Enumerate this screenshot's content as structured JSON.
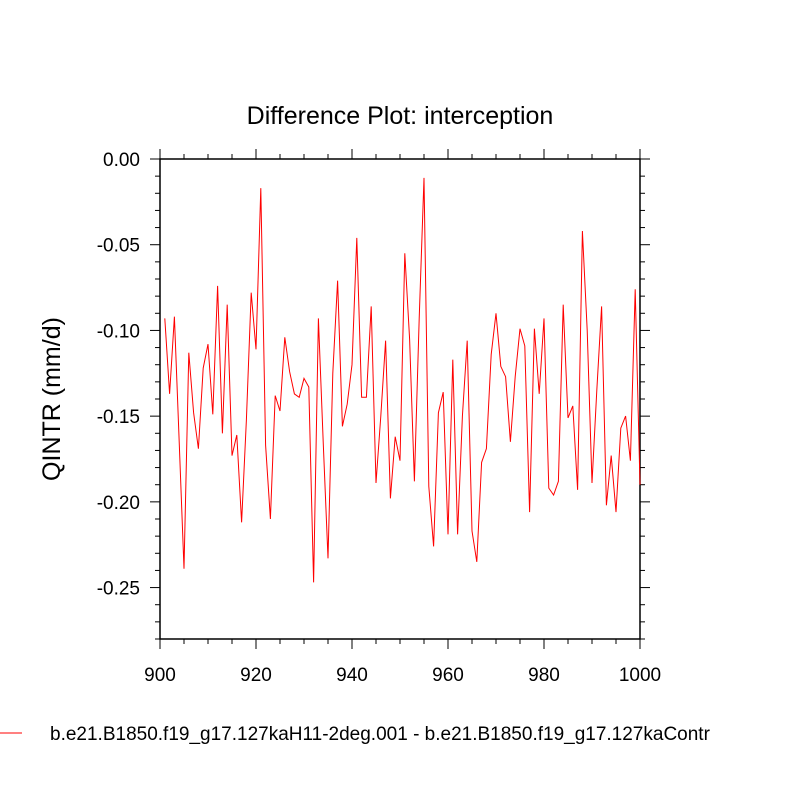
{
  "chart_data": {
    "type": "line",
    "title": "Difference Plot: interception",
    "xlabel": "",
    "ylabel": "QINTR  (mm/d)",
    "xlim": [
      900,
      1000
    ],
    "ylim": [
      -0.28,
      0.0
    ],
    "xticks": [
      900,
      920,
      940,
      960,
      980,
      1000
    ],
    "xtick_labels": [
      "900",
      "920",
      "940",
      "960",
      "980",
      "1000"
    ],
    "yticks": [
      0.0,
      -0.05,
      -0.1,
      -0.15,
      -0.2,
      -0.25
    ],
    "ytick_labels": [
      "0.00",
      "-0.05",
      "-0.10",
      "-0.15",
      "-0.20",
      "-0.25"
    ],
    "grid": false,
    "legend_placement": "bottom",
    "line_color": "#ff0000",
    "series": [
      {
        "name": "b.e21.B1850.f19_g17.127kaH11-2deg.001 - b.e21.B1850.f19_g17.127kaContr",
        "x_start": 901,
        "values": [
          -0.093,
          -0.137,
          -0.092,
          -0.165,
          -0.239,
          -0.113,
          -0.148,
          -0.169,
          -0.122,
          -0.108,
          -0.149,
          -0.074,
          -0.16,
          -0.085,
          -0.173,
          -0.161,
          -0.212,
          -0.152,
          -0.078,
          -0.111,
          -0.017,
          -0.167,
          -0.21,
          -0.138,
          -0.147,
          -0.104,
          -0.124,
          -0.137,
          -0.139,
          -0.128,
          -0.133,
          -0.247,
          -0.093,
          -0.165,
          -0.233,
          -0.125,
          -0.071,
          -0.156,
          -0.143,
          -0.12,
          -0.046,
          -0.139,
          -0.139,
          -0.086,
          -0.189,
          -0.15,
          -0.106,
          -0.198,
          -0.162,
          -0.176,
          -0.055,
          -0.105,
          -0.188,
          -0.093,
          -0.011,
          -0.191,
          -0.226,
          -0.148,
          -0.136,
          -0.219,
          -0.117,
          -0.219,
          -0.15,
          -0.106,
          -0.217,
          -0.235,
          -0.177,
          -0.169,
          -0.114,
          -0.09,
          -0.121,
          -0.127,
          -0.165,
          -0.127,
          -0.099,
          -0.109,
          -0.206,
          -0.099,
          -0.137,
          -0.093,
          -0.192,
          -0.196,
          -0.188,
          -0.085,
          -0.151,
          -0.144,
          -0.193,
          -0.042,
          -0.1,
          -0.189,
          -0.135,
          -0.086,
          -0.202,
          -0.173,
          -0.206,
          -0.157,
          -0.15,
          -0.176,
          -0.076,
          -0.19
        ]
      }
    ]
  }
}
